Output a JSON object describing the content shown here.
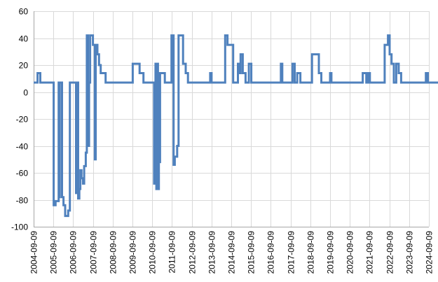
{
  "chart_data": {
    "type": "line",
    "title": "",
    "xlabel": "",
    "ylabel": "",
    "ylim": [
      -100,
      60
    ],
    "y_ticks": [
      "60",
      "40",
      "20",
      "0",
      "-20",
      "-40",
      "-60",
      "-80",
      "-100"
    ],
    "x_ticks": [
      "2004-09-09",
      "2005-09-09",
      "2006-09-09",
      "2007-09-09",
      "2008-09-09",
      "2009-09-09",
      "2010-09-09",
      "2011-09-09",
      "2012-09-09",
      "2013-09-09",
      "2014-09-09",
      "2015-09-09",
      "2016-09-09",
      "2017-09-09",
      "2018-09-09",
      "2019-09-09",
      "2020-09-09",
      "2021-09-09",
      "2022-09-09",
      "2023-09-09",
      "2024-09-09"
    ],
    "grid": true,
    "legend": "none",
    "line_color": "#4f81bd",
    "series": [
      {
        "points": [
          [
            "2004-09-09",
            7
          ],
          [
            "2004-11-20",
            7
          ],
          [
            "2004-11-20",
            14
          ],
          [
            "2005-01-10",
            14
          ],
          [
            "2005-01-10",
            7
          ],
          [
            "2005-09-15",
            7
          ],
          [
            "2005-09-15",
            -84
          ],
          [
            "2005-10-20",
            -84
          ],
          [
            "2005-10-20",
            -81
          ],
          [
            "2005-12-15",
            -81
          ],
          [
            "2005-12-15",
            7
          ],
          [
            "2005-12-25",
            7
          ],
          [
            "2005-12-25",
            -78
          ],
          [
            "2006-01-05",
            -78
          ],
          [
            "2006-01-05",
            7
          ],
          [
            "2006-02-15",
            7
          ],
          [
            "2006-02-15",
            -78
          ],
          [
            "2006-03-15",
            -78
          ],
          [
            "2006-03-15",
            -84
          ],
          [
            "2006-04-15",
            -84
          ],
          [
            "2006-04-15",
            -92
          ],
          [
            "2006-06-10",
            -92
          ],
          [
            "2006-06-10",
            -88
          ],
          [
            "2006-07-10",
            -88
          ],
          [
            "2006-07-10",
            7
          ],
          [
            "2006-11-01",
            7
          ],
          [
            "2006-11-01",
            -75
          ],
          [
            "2006-11-20",
            -75
          ],
          [
            "2006-11-20",
            7
          ],
          [
            "2006-12-10",
            7
          ],
          [
            "2006-12-10",
            -79
          ],
          [
            "2007-01-01",
            -79
          ],
          [
            "2007-01-01",
            -72
          ],
          [
            "2007-01-20",
            -72
          ],
          [
            "2007-01-20",
            -58
          ],
          [
            "2007-02-10",
            -58
          ],
          [
            "2007-02-10",
            -64
          ],
          [
            "2007-03-10",
            -64
          ],
          [
            "2007-03-10",
            -68
          ],
          [
            "2007-04-01",
            -68
          ],
          [
            "2007-04-01",
            -55
          ],
          [
            "2007-05-01",
            -55
          ],
          [
            "2007-05-01",
            -45
          ],
          [
            "2007-05-20",
            -45
          ],
          [
            "2007-05-20",
            42
          ],
          [
            "2007-06-10",
            42
          ],
          [
            "2007-06-10",
            -40
          ],
          [
            "2007-07-01",
            -40
          ],
          [
            "2007-07-01",
            7
          ],
          [
            "2007-07-20",
            7
          ],
          [
            "2007-07-20",
            42
          ],
          [
            "2007-09-10",
            42
          ],
          [
            "2007-09-10",
            35
          ],
          [
            "2007-10-15",
            35
          ],
          [
            "2007-10-15",
            -50
          ],
          [
            "2007-11-01",
            -50
          ],
          [
            "2007-11-01",
            35
          ],
          [
            "2007-12-01",
            35
          ],
          [
            "2007-12-01",
            28
          ],
          [
            "2008-01-01",
            28
          ],
          [
            "2008-01-01",
            20
          ],
          [
            "2008-02-01",
            20
          ],
          [
            "2008-02-01",
            14
          ],
          [
            "2008-05-01",
            14
          ],
          [
            "2008-05-01",
            7
          ],
          [
            "2009-09-15",
            7
          ],
          [
            "2009-09-15",
            21
          ],
          [
            "2010-01-20",
            21
          ],
          [
            "2010-01-20",
            14
          ],
          [
            "2010-04-01",
            14
          ],
          [
            "2010-04-01",
            7
          ],
          [
            "2010-10-15",
            7
          ],
          [
            "2010-10-15",
            -68
          ],
          [
            "2010-11-10",
            -68
          ],
          [
            "2010-11-10",
            21
          ],
          [
            "2010-11-25",
            21
          ],
          [
            "2010-11-25",
            -72
          ],
          [
            "2010-12-10",
            -72
          ],
          [
            "2010-12-10",
            21
          ],
          [
            "2010-12-25",
            21
          ],
          [
            "2010-12-25",
            -72
          ],
          [
            "2011-01-10",
            -72
          ],
          [
            "2011-01-10",
            -52
          ],
          [
            "2011-02-01",
            -52
          ],
          [
            "2011-02-01",
            14
          ],
          [
            "2011-05-01",
            14
          ],
          [
            "2011-05-01",
            7
          ],
          [
            "2011-09-01",
            7
          ],
          [
            "2011-09-01",
            42
          ],
          [
            "2011-10-10",
            42
          ],
          [
            "2011-10-10",
            -54
          ],
          [
            "2011-11-01",
            -54
          ],
          [
            "2011-11-01",
            -48
          ],
          [
            "2011-12-15",
            -48
          ],
          [
            "2011-12-15",
            -40
          ],
          [
            "2012-01-10",
            -40
          ],
          [
            "2012-01-10",
            42
          ],
          [
            "2012-04-01",
            42
          ],
          [
            "2012-04-01",
            21
          ],
          [
            "2012-05-20",
            21
          ],
          [
            "2012-05-20",
            14
          ],
          [
            "2012-07-01",
            14
          ],
          [
            "2012-07-01",
            7
          ],
          [
            "2013-08-15",
            7
          ],
          [
            "2013-08-15",
            14
          ],
          [
            "2013-09-10",
            14
          ],
          [
            "2013-09-10",
            7
          ],
          [
            "2014-05-20",
            7
          ],
          [
            "2014-05-20",
            42
          ],
          [
            "2014-07-01",
            42
          ],
          [
            "2014-07-01",
            35
          ],
          [
            "2014-10-15",
            35
          ],
          [
            "2014-10-15",
            7
          ],
          [
            "2015-01-10",
            7
          ],
          [
            "2015-01-10",
            21
          ],
          [
            "2015-02-10",
            21
          ],
          [
            "2015-02-10",
            14
          ],
          [
            "2015-03-01",
            14
          ],
          [
            "2015-03-01",
            28
          ],
          [
            "2015-04-10",
            28
          ],
          [
            "2015-04-10",
            14
          ],
          [
            "2015-06-01",
            14
          ],
          [
            "2015-06-01",
            7
          ],
          [
            "2015-08-01",
            7
          ],
          [
            "2015-08-01",
            21
          ],
          [
            "2015-09-15",
            21
          ],
          [
            "2015-09-15",
            7
          ],
          [
            "2017-03-15",
            7
          ],
          [
            "2017-03-15",
            21
          ],
          [
            "2017-04-10",
            21
          ],
          [
            "2017-04-10",
            7
          ],
          [
            "2017-10-15",
            7
          ],
          [
            "2017-10-15",
            21
          ],
          [
            "2017-11-25",
            21
          ],
          [
            "2017-11-25",
            7
          ],
          [
            "2018-01-10",
            7
          ],
          [
            "2018-01-10",
            14
          ],
          [
            "2018-03-10",
            14
          ],
          [
            "2018-03-10",
            7
          ],
          [
            "2018-10-10",
            7
          ],
          [
            "2018-10-10",
            28
          ],
          [
            "2019-02-15",
            28
          ],
          [
            "2019-02-15",
            14
          ],
          [
            "2019-04-01",
            14
          ],
          [
            "2019-04-01",
            7
          ],
          [
            "2019-09-10",
            7
          ],
          [
            "2019-09-10",
            14
          ],
          [
            "2019-10-05",
            14
          ],
          [
            "2019-10-05",
            7
          ],
          [
            "2021-05-05",
            7
          ],
          [
            "2021-05-05",
            14
          ],
          [
            "2021-07-10",
            14
          ],
          [
            "2021-07-10",
            7
          ],
          [
            "2021-08-10",
            7
          ],
          [
            "2021-08-10",
            14
          ],
          [
            "2021-09-15",
            14
          ],
          [
            "2021-09-15",
            7
          ],
          [
            "2022-06-15",
            7
          ],
          [
            "2022-06-15",
            35
          ],
          [
            "2022-08-15",
            35
          ],
          [
            "2022-08-15",
            42
          ],
          [
            "2022-09-15",
            42
          ],
          [
            "2022-09-15",
            28
          ],
          [
            "2022-10-20",
            28
          ],
          [
            "2022-10-20",
            21
          ],
          [
            "2022-12-01",
            21
          ],
          [
            "2022-12-01",
            7
          ],
          [
            "2023-01-15",
            7
          ],
          [
            "2023-01-15",
            21
          ],
          [
            "2023-03-01",
            21
          ],
          [
            "2023-03-01",
            14
          ],
          [
            "2023-04-15",
            14
          ],
          [
            "2023-04-15",
            7
          ],
          [
            "2024-07-15",
            7
          ],
          [
            "2024-07-15",
            14
          ],
          [
            "2024-08-20",
            14
          ],
          [
            "2024-08-20",
            7
          ],
          [
            "2025-11-20",
            7
          ]
        ]
      }
    ]
  }
}
